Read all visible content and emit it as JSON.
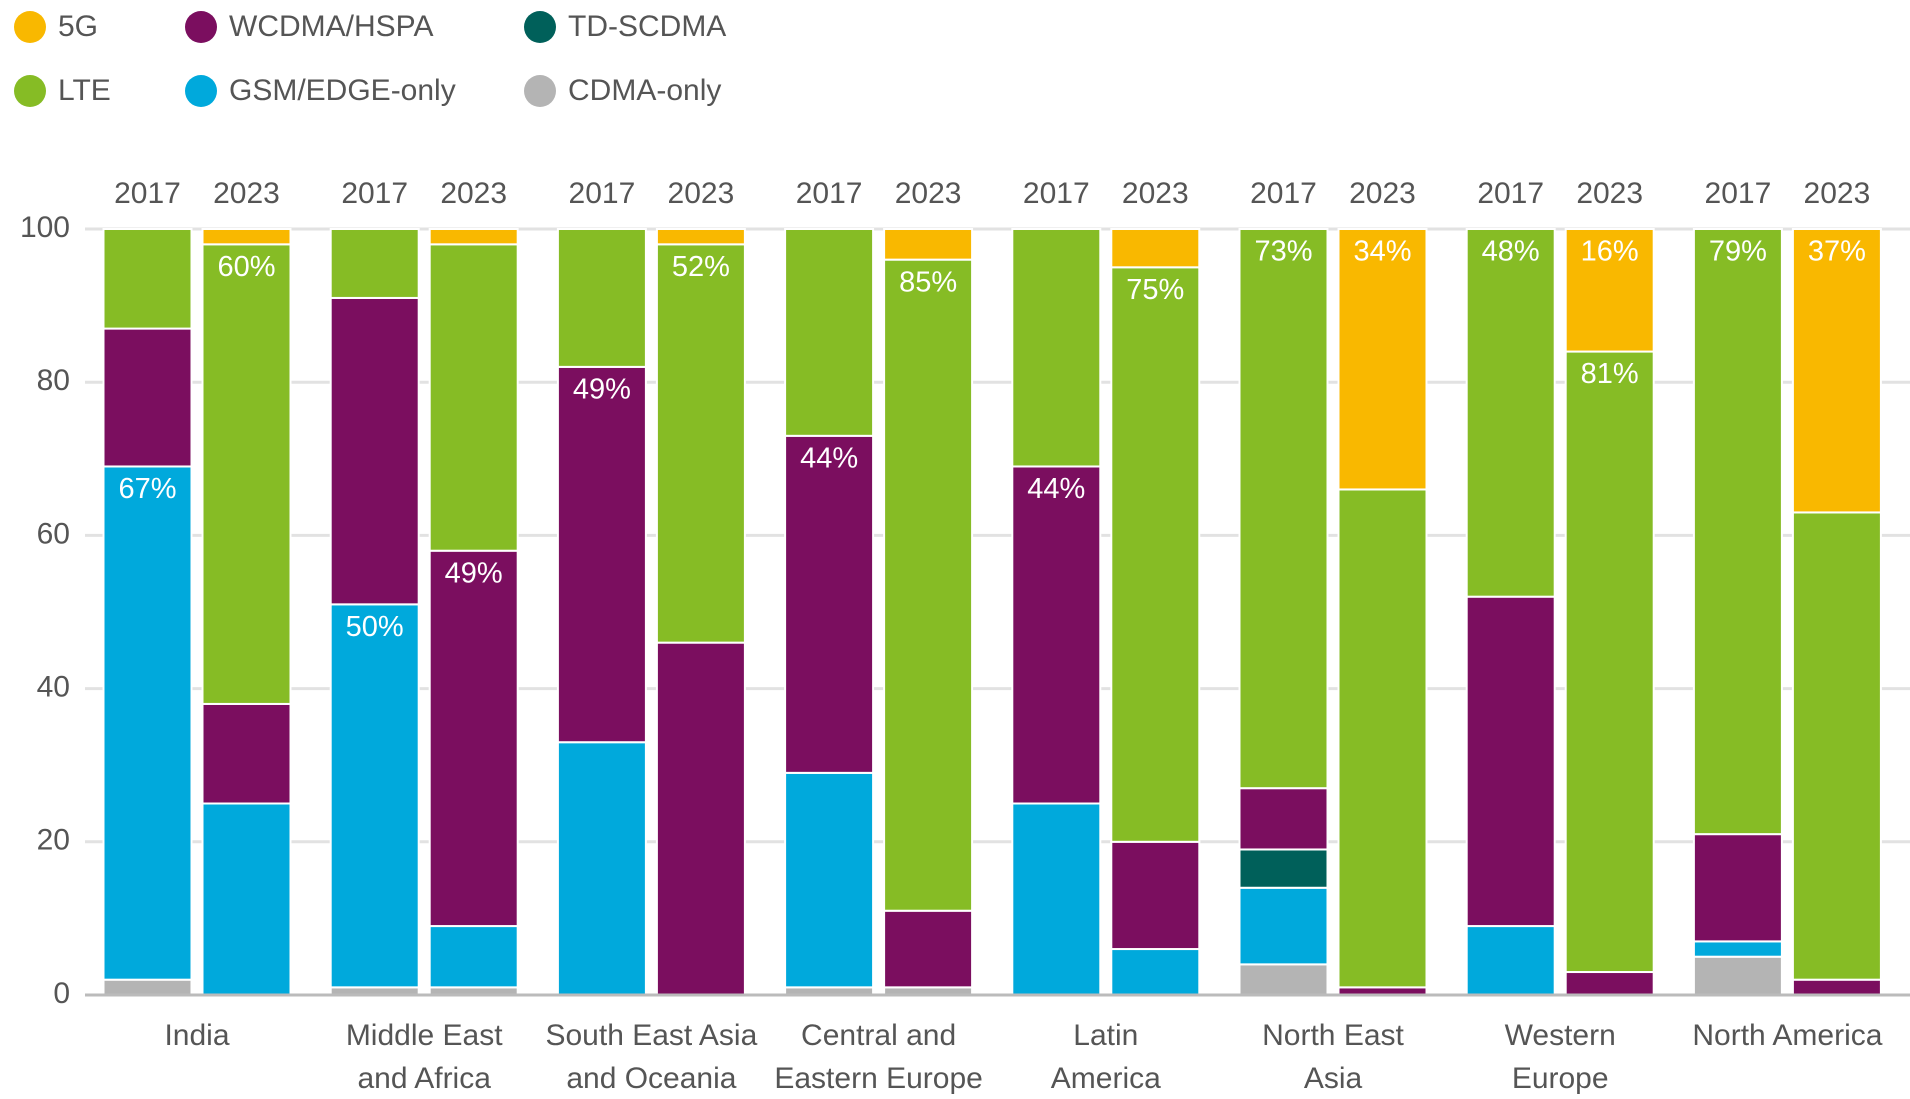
{
  "chart_data": {
    "type": "stacked_bar",
    "groups": [
      [
        "India"
      ],
      [
        "Middle East",
        "and Africa"
      ],
      [
        "South East Asia",
        "and Oceania"
      ],
      [
        "Central and",
        "Eastern Europe"
      ],
      [
        "Latin",
        "America"
      ],
      [
        "North East",
        "Asia"
      ],
      [
        "Western",
        "Europe"
      ],
      [
        "North America"
      ]
    ],
    "categories": [
      "2017",
      "2023",
      "2017",
      "2023",
      "2017",
      "2023",
      "2017",
      "2023",
      "2017",
      "2023",
      "2017",
      "2023",
      "2017",
      "2023",
      "2017",
      "2023"
    ],
    "series": [
      {
        "name": "CDMA-only",
        "color": "#b4b4b4",
        "values": [
          2,
          0,
          1,
          1,
          0,
          0,
          1,
          1,
          0,
          0,
          4,
          0,
          0,
          0,
          5,
          0
        ]
      },
      {
        "name": "GSM/EDGE-only",
        "color": "#00a9dc",
        "values": [
          67,
          25,
          50,
          8,
          33,
          0,
          28,
          0,
          25,
          6,
          10,
          0,
          9,
          0,
          2,
          0
        ],
        "value_labels": [
          "67%",
          null,
          "50%",
          null,
          null,
          null,
          null,
          null,
          null,
          null,
          null,
          null,
          null,
          null,
          null,
          null
        ]
      },
      {
        "name": "TD-SCDMA",
        "color": "#00605a",
        "values": [
          0,
          0,
          0,
          0,
          0,
          0,
          0,
          0,
          0,
          0,
          5,
          0,
          0,
          0,
          0,
          0
        ]
      },
      {
        "name": "WCDMA/HSPA",
        "color": "#7b0e5f",
        "values": [
          18,
          13,
          40,
          49,
          49,
          46,
          44,
          10,
          44,
          14,
          8,
          1,
          43,
          3,
          14,
          2
        ],
        "value_labels": [
          null,
          null,
          null,
          "49%",
          "49%",
          null,
          "44%",
          null,
          "44%",
          null,
          null,
          null,
          null,
          null,
          null,
          null
        ]
      },
      {
        "name": "LTE",
        "color": "#86bc25",
        "values": [
          13,
          60,
          9,
          40,
          18,
          52,
          27,
          85,
          31,
          75,
          73,
          65,
          48,
          81,
          79,
          61
        ],
        "value_labels": [
          null,
          "60%",
          null,
          null,
          null,
          "52%",
          null,
          "85%",
          null,
          "75%",
          "73%",
          null,
          "48%",
          "81%",
          "79%",
          null
        ]
      },
      {
        "name": "5G",
        "color": "#f9b800",
        "values": [
          0,
          2,
          0,
          2,
          0,
          2,
          0,
          4,
          0,
          5,
          0,
          34,
          0,
          16,
          0,
          37
        ],
        "value_labels": [
          null,
          null,
          null,
          null,
          null,
          null,
          null,
          null,
          null,
          null,
          null,
          "34%",
          null,
          "16%",
          null,
          "37%"
        ]
      }
    ],
    "ylim": [
      0,
      100
    ],
    "yticks": [
      0,
      20,
      40,
      60,
      80,
      100
    ],
    "grid": true
  }
}
